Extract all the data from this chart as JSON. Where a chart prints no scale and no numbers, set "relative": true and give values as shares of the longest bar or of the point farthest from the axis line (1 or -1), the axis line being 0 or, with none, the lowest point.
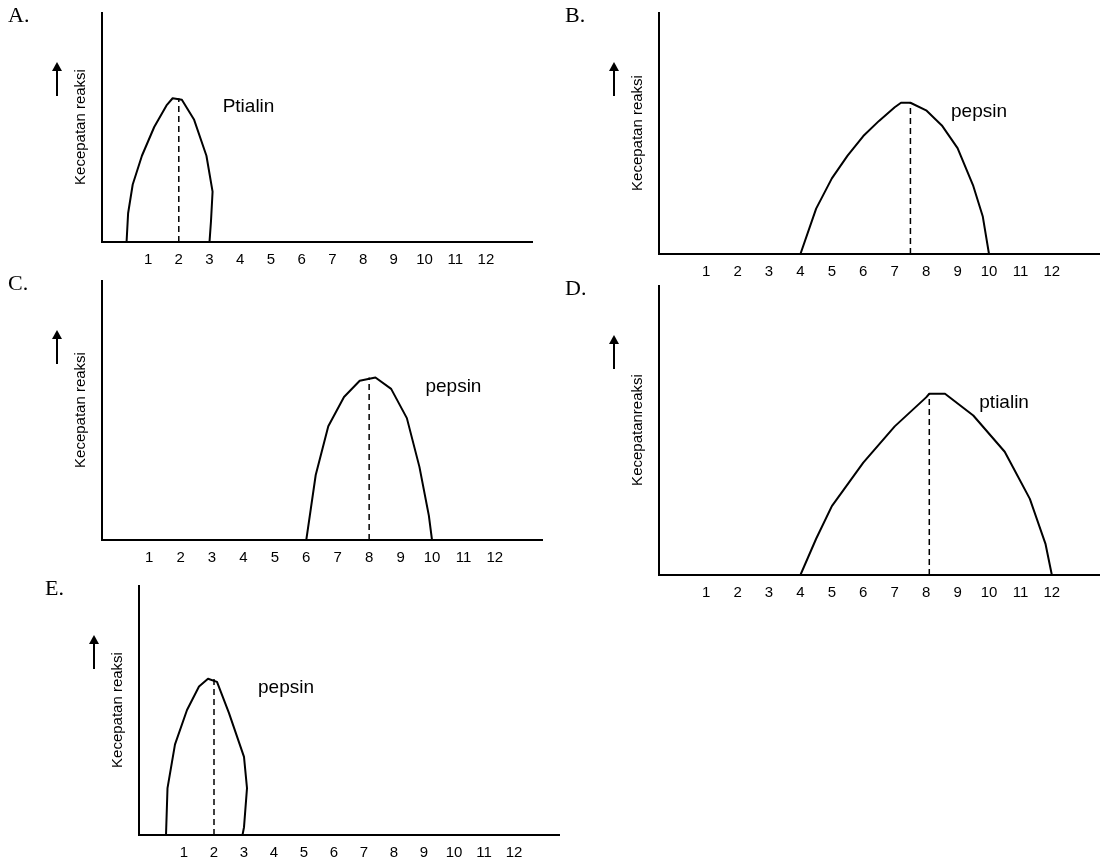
{
  "chart_data": [
    {
      "type": "line",
      "title": "A.",
      "ylabel": "Kecepatan reaksi",
      "relative": true,
      "marker": "none",
      "line_style": "solid",
      "xlim": [
        -0.5,
        13.5
      ],
      "xticks": [
        1,
        2,
        3,
        4,
        5,
        6,
        7,
        8,
        9,
        10,
        11,
        12
      ],
      "ref_lines": [
        {
          "axis": "x",
          "value": 2,
          "line_style": "dashed"
        }
      ],
      "series": [
        {
          "name": "Ptialin",
          "color": "#000000",
          "x": [
            0.3,
            0.35,
            0.5,
            0.8,
            1.2,
            1.6,
            1.8,
            2.1,
            2.5,
            2.9,
            3.1,
            3.05,
            3.0
          ],
          "values": [
            0,
            0.2,
            0.4,
            0.6,
            0.8,
            0.95,
            1,
            0.99,
            0.85,
            0.6,
            0.35,
            0.15,
            0
          ]
        }
      ]
    },
    {
      "type": "line",
      "title": "B.",
      "ylabel": "Kecepatan reaksi",
      "relative": true,
      "marker": "none",
      "line_style": "solid",
      "xlim": [
        -0.5,
        13.5
      ],
      "xticks": [
        1,
        2,
        3,
        4,
        5,
        6,
        7,
        8,
        9,
        10,
        11,
        12
      ],
      "ref_lines": [
        {
          "axis": "x",
          "value": 7.5,
          "line_style": "dashed"
        }
      ],
      "series": [
        {
          "name": "pepsin",
          "color": "#000000",
          "x": [
            4,
            4.5,
            5,
            5.5,
            6,
            6.5,
            7,
            7.2,
            7.5,
            8,
            8.5,
            9,
            9.5,
            9.8,
            10
          ],
          "values": [
            0,
            0.3,
            0.5,
            0.65,
            0.78,
            0.88,
            0.97,
            1,
            1,
            0.95,
            0.85,
            0.7,
            0.45,
            0.25,
            0
          ]
        }
      ]
    },
    {
      "type": "line",
      "title": "C.",
      "ylabel": "Kecepatan reaksi",
      "relative": true,
      "marker": "none",
      "line_style": "solid",
      "xlim": [
        -0.5,
        13.5
      ],
      "xticks": [
        1,
        2,
        3,
        4,
        5,
        6,
        7,
        8,
        9,
        10,
        11,
        12
      ],
      "ref_lines": [
        {
          "axis": "x",
          "value": 8,
          "line_style": "dashed"
        }
      ],
      "series": [
        {
          "name": "pepsin",
          "color": "#000000",
          "x": [
            6,
            6.3,
            6.7,
            7.2,
            7.7,
            8.2,
            8.7,
            9.2,
            9.6,
            9.9,
            10
          ],
          "values": [
            0,
            0.4,
            0.7,
            0.88,
            0.98,
            1,
            0.93,
            0.75,
            0.45,
            0.15,
            0
          ]
        }
      ]
    },
    {
      "type": "line",
      "title": "D.",
      "ylabel": "Kecepatanreaksi",
      "relative": true,
      "marker": "none",
      "line_style": "solid",
      "xlim": [
        -0.5,
        13.5
      ],
      "xticks": [
        1,
        2,
        3,
        4,
        5,
        6,
        7,
        8,
        9,
        10,
        11,
        12
      ],
      "ref_lines": [
        {
          "axis": "x",
          "value": 8.1,
          "line_style": "dashed"
        }
      ],
      "series": [
        {
          "name": "ptialin",
          "color": "#000000",
          "x": [
            4,
            4.5,
            5,
            6,
            7,
            8,
            8.1,
            8.6,
            9.5,
            10.5,
            11.3,
            11.8,
            12
          ],
          "values": [
            0,
            0.2,
            0.38,
            0.62,
            0.82,
            0.98,
            1,
            1,
            0.88,
            0.68,
            0.42,
            0.17,
            0
          ]
        }
      ]
    },
    {
      "type": "line",
      "title": "E.",
      "ylabel": "Kecepatan reaksi",
      "relative": true,
      "marker": "none",
      "line_style": "solid",
      "xlim": [
        -0.5,
        13.5
      ],
      "xticks": [
        1,
        2,
        3,
        4,
        5,
        6,
        7,
        8,
        9,
        10,
        11,
        12
      ],
      "ref_lines": [
        {
          "axis": "x",
          "value": 2,
          "line_style": "dashed"
        }
      ],
      "series": [
        {
          "name": "pepsin",
          "color": "#000000",
          "x": [
            0.4,
            0.45,
            0.7,
            1.1,
            1.5,
            1.8,
            2.1,
            2.5,
            3.0,
            3.1,
            3.0,
            2.95
          ],
          "values": [
            0,
            0.3,
            0.58,
            0.8,
            0.95,
            1,
            0.98,
            0.78,
            0.5,
            0.3,
            0.05,
            0
          ]
        }
      ]
    }
  ]
}
